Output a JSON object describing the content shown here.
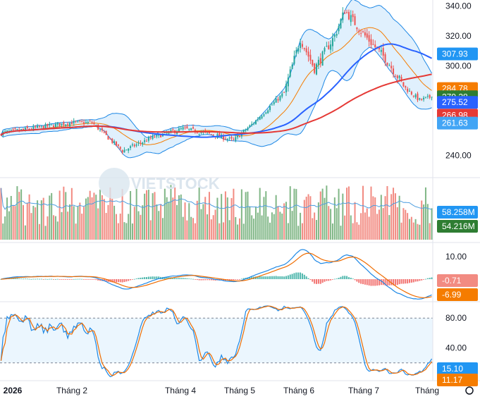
{
  "watermark": {
    "text": "VIETSTOCK"
  },
  "colors": {
    "up": "#26a69a",
    "down": "#ef5350",
    "ma_blue": "#2962ff",
    "ma_red": "#e53935",
    "ma_orange": "#f57c00",
    "band": "#1e88e5",
    "vol_up": "#81b787",
    "vol_down": "#f28b82",
    "stoch_fast": "#1e88e5",
    "stoch_slow": "#ef6c00"
  },
  "x_axis": {
    "labels": [
      "2026",
      "Tháng 2",
      "Tháng 4",
      "Tháng 5",
      "Tháng 6",
      "Tháng 7",
      "Tháng"
    ]
  },
  "chart_data": [
    {
      "type": "candlestick",
      "panel": "price",
      "y_ticks": [
        240,
        260,
        280,
        300,
        320,
        340
      ],
      "ylim": [
        228,
        344
      ],
      "price_badges": [
        {
          "label": "307.93",
          "color": "#2196f3"
        },
        {
          "label": "284.78",
          "color": "#f57c00"
        },
        {
          "label": "279.28",
          "color": "#2e7d32"
        },
        {
          "label": "275.52",
          "color": "#2962ff"
        },
        {
          "label": "266.98",
          "color": "#e53935"
        },
        {
          "label": "261.63",
          "color": "#42a5f5"
        }
      ],
      "key_points": [
        {
          "t": 0,
          "close": 255
        },
        {
          "t": 20,
          "close": 259
        },
        {
          "t": 35,
          "close": 262
        },
        {
          "t": 45,
          "close": 262
        },
        {
          "t": 60,
          "close": 243
        },
        {
          "t": 75,
          "close": 252
        },
        {
          "t": 90,
          "close": 258
        },
        {
          "t": 105,
          "close": 254
        },
        {
          "t": 115,
          "close": 250
        },
        {
          "t": 125,
          "close": 262
        },
        {
          "t": 140,
          "close": 282
        },
        {
          "t": 148,
          "close": 318
        },
        {
          "t": 155,
          "close": 298
        },
        {
          "t": 165,
          "close": 320
        },
        {
          "t": 170,
          "close": 337
        },
        {
          "t": 180,
          "close": 320
        },
        {
          "t": 190,
          "close": 305
        },
        {
          "t": 200,
          "close": 285
        },
        {
          "t": 207,
          "close": 277
        },
        {
          "t": 213,
          "close": 279.28
        }
      ],
      "bands_last": {
        "upper": 307.93,
        "mid": 284.78,
        "lower": 261.63
      },
      "ma_last": {
        "blue": 275.52,
        "red": 266.98
      }
    },
    {
      "type": "bar",
      "panel": "volume",
      "badges": [
        {
          "label": "58.258M",
          "color": "#2196f3"
        },
        {
          "label": "54.216M",
          "color": "#2e7d32"
        }
      ]
    },
    {
      "type": "line",
      "panel": "macd",
      "y_ticks": [
        10
      ],
      "badges": [
        {
          "label": "-0.71",
          "color": "#f28b82",
          "text_color": "#131722"
        },
        {
          "label": "-6.99",
          "color": "#f57c00",
          "text_color": "#ffffff"
        }
      ]
    },
    {
      "type": "line",
      "panel": "stochastic",
      "y_ticks": [
        80,
        40
      ],
      "ylim": [
        0,
        100
      ],
      "badges": [
        {
          "label": "15.10",
          "color": "#2196f3"
        },
        {
          "label": "11.17",
          "color": "#f57c00"
        }
      ]
    }
  ]
}
